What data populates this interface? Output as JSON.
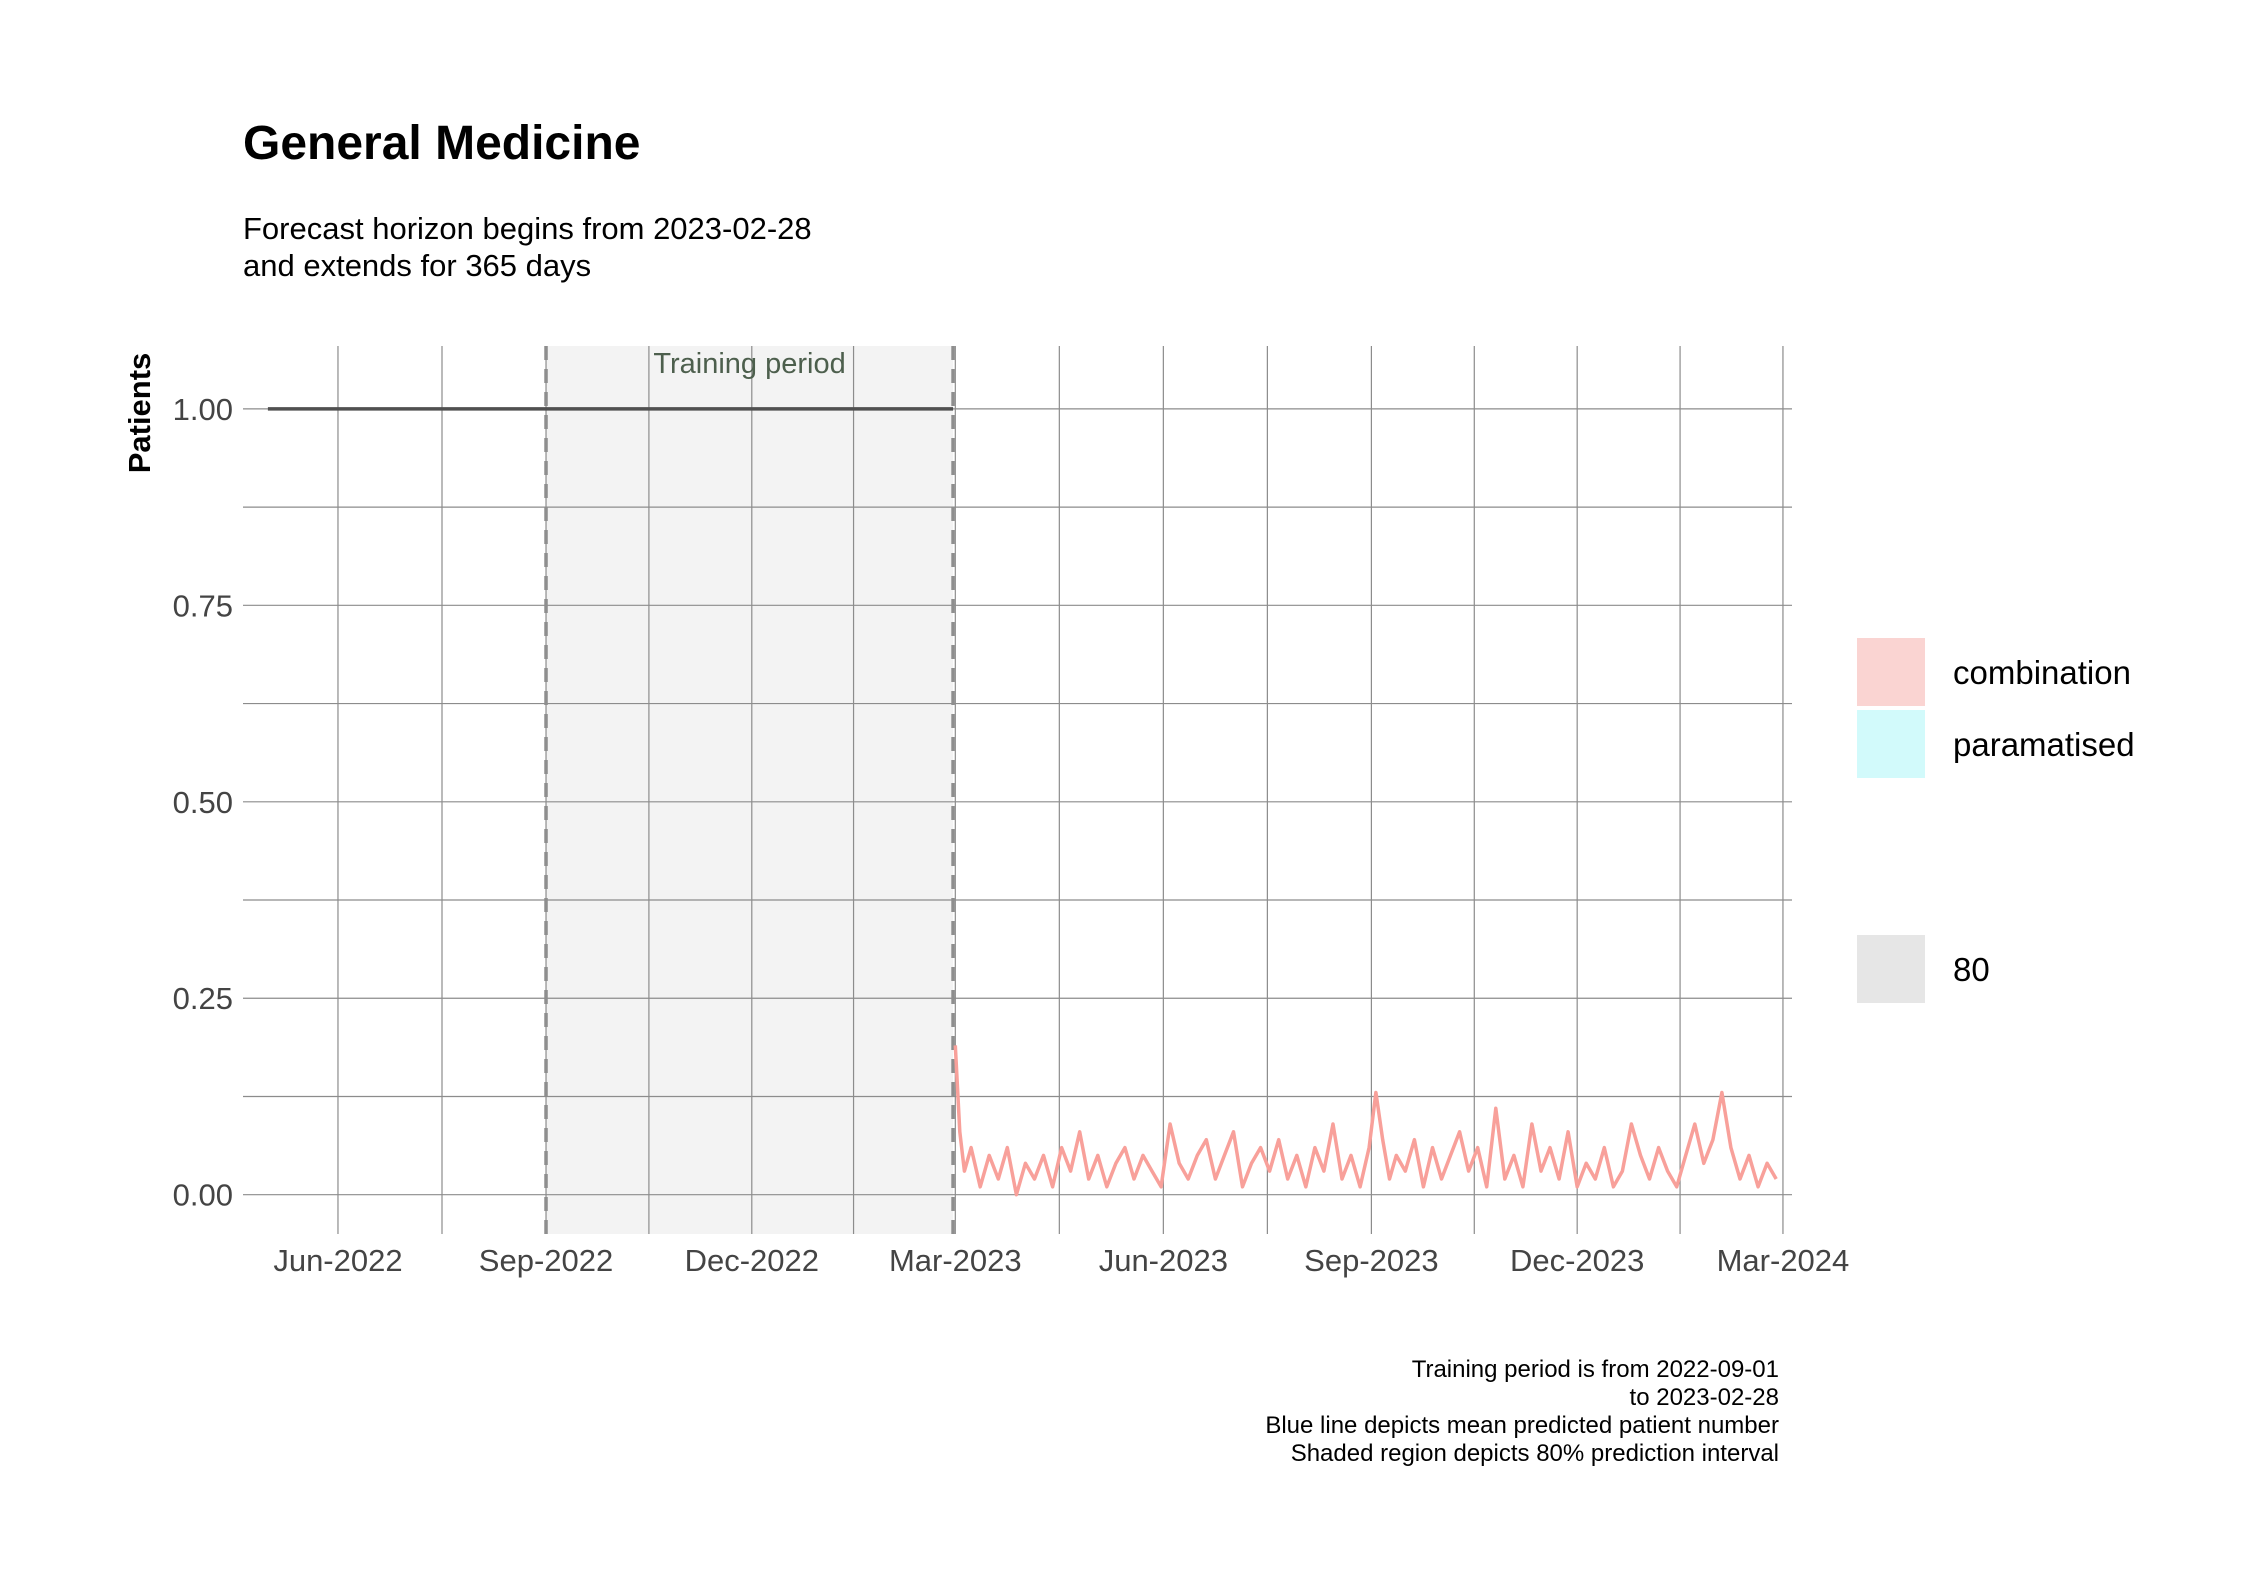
{
  "chart_data": {
    "type": "line",
    "title": "General Medicine",
    "subtitle_lines": [
      "Forecast horizon begins from 2023-02-28",
      "and extends for 365 days"
    ],
    "ylabel": "Patients",
    "xlabel": "",
    "x_axis": {
      "type": "date",
      "range": [
        "2022-04-20",
        "2024-03-05"
      ],
      "ticks": [
        "2022-06-01",
        "2022-09-01",
        "2022-12-01",
        "2023-03-01",
        "2023-06-01",
        "2023-09-01",
        "2023-12-01",
        "2024-03-01"
      ],
      "tick_labels": [
        "Jun-2022",
        "Sep-2022",
        "Dec-2022",
        "Mar-2023",
        "Jun-2023",
        "Sep-2023",
        "Dec-2023",
        "Mar-2024"
      ]
    },
    "y_axis": {
      "range": [
        -0.05,
        1.08
      ],
      "ticks": [
        0,
        0.25,
        0.5,
        0.75,
        1.0
      ],
      "tick_labels": [
        "0.00",
        "0.25",
        "0.50",
        "0.75",
        "1.00"
      ]
    },
    "grid": true,
    "training_period": {
      "start": "2022-09-01",
      "end": "2023-02-28",
      "label": "Training period"
    },
    "series": [
      {
        "role": "observed",
        "color": "#505050",
        "x": [
          "2022-05-01",
          "2023-02-28"
        ],
        "y": [
          1.0,
          1.0
        ]
      },
      {
        "name": "combination",
        "color": "#f8a09a",
        "x": [
          "2023-03-01",
          "2023-03-03",
          "2023-03-05",
          "2023-03-08",
          "2023-03-12",
          "2023-03-16",
          "2023-03-20",
          "2023-03-24",
          "2023-03-28",
          "2023-04-01",
          "2023-04-05",
          "2023-04-09",
          "2023-04-13",
          "2023-04-17",
          "2023-04-21",
          "2023-04-25",
          "2023-04-29",
          "2023-05-03",
          "2023-05-07",
          "2023-05-11",
          "2023-05-15",
          "2023-05-19",
          "2023-05-23",
          "2023-05-27",
          "2023-05-31",
          "2023-06-04",
          "2023-06-08",
          "2023-06-12",
          "2023-06-16",
          "2023-06-20",
          "2023-06-24",
          "2023-06-28",
          "2023-07-02",
          "2023-07-06",
          "2023-07-10",
          "2023-07-14",
          "2023-07-18",
          "2023-07-22",
          "2023-07-26",
          "2023-07-30",
          "2023-08-03",
          "2023-08-07",
          "2023-08-11",
          "2023-08-15",
          "2023-08-19",
          "2023-08-23",
          "2023-08-27",
          "2023-08-31",
          "2023-09-03",
          "2023-09-06",
          "2023-09-09",
          "2023-09-12",
          "2023-09-16",
          "2023-09-20",
          "2023-09-24",
          "2023-09-28",
          "2023-10-02",
          "2023-10-06",
          "2023-10-10",
          "2023-10-14",
          "2023-10-18",
          "2023-10-22",
          "2023-10-26",
          "2023-10-30",
          "2023-11-03",
          "2023-11-07",
          "2023-11-11",
          "2023-11-15",
          "2023-11-19",
          "2023-11-23",
          "2023-11-27",
          "2023-12-01",
          "2023-12-05",
          "2023-12-09",
          "2023-12-13",
          "2023-12-17",
          "2023-12-21",
          "2023-12-25",
          "2023-12-29",
          "2024-01-02",
          "2024-01-06",
          "2024-01-10",
          "2024-01-14",
          "2024-01-18",
          "2024-01-22",
          "2024-01-26",
          "2024-01-30",
          "2024-02-03",
          "2024-02-07",
          "2024-02-11",
          "2024-02-15",
          "2024-02-19",
          "2024-02-23",
          "2024-02-27"
        ],
        "y": [
          0.19,
          0.08,
          0.03,
          0.06,
          0.01,
          0.05,
          0.02,
          0.06,
          0.0,
          0.04,
          0.02,
          0.05,
          0.01,
          0.06,
          0.03,
          0.08,
          0.02,
          0.05,
          0.01,
          0.04,
          0.06,
          0.02,
          0.05,
          0.03,
          0.01,
          0.09,
          0.04,
          0.02,
          0.05,
          0.07,
          0.02,
          0.05,
          0.08,
          0.01,
          0.04,
          0.06,
          0.03,
          0.07,
          0.02,
          0.05,
          0.01,
          0.06,
          0.03,
          0.09,
          0.02,
          0.05,
          0.01,
          0.06,
          0.13,
          0.07,
          0.02,
          0.05,
          0.03,
          0.07,
          0.01,
          0.06,
          0.02,
          0.05,
          0.08,
          0.03,
          0.06,
          0.01,
          0.11,
          0.02,
          0.05,
          0.01,
          0.09,
          0.03,
          0.06,
          0.02,
          0.08,
          0.01,
          0.04,
          0.02,
          0.06,
          0.01,
          0.03,
          0.09,
          0.05,
          0.02,
          0.06,
          0.03,
          0.01,
          0.05,
          0.09,
          0.04,
          0.07,
          0.13,
          0.06,
          0.02,
          0.05,
          0.01,
          0.04,
          0.02
        ]
      },
      {
        "name": "paramatised",
        "color": "#b3f5f5"
      }
    ],
    "legend": {
      "position": "right",
      "entries": [
        {
          "label": "combination",
          "color": "#fad4d2"
        },
        {
          "label": "paramatised",
          "color": "#d2fafb"
        }
      ],
      "interval_entries": [
        {
          "label": "80",
          "color": "#e6e6e6"
        }
      ]
    },
    "caption_lines": [
      "Training period is from 2022-09-01",
      "to 2023-02-28",
      "Blue line depicts mean predicted patient number",
      "Shaded region depicts 80% prediction interval"
    ]
  }
}
